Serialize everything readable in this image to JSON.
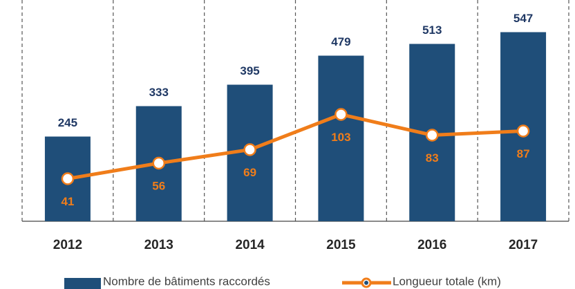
{
  "chart_data": {
    "type": "bar",
    "categories": [
      "2012",
      "2013",
      "2014",
      "2015",
      "2016",
      "2017"
    ],
    "series": [
      {
        "name": "Nombre de bâtiments raccordés",
        "color": "#1f4e79",
        "values": [
          245,
          333,
          395,
          479,
          513,
          547
        ]
      },
      {
        "name": "Longueur totale (km)",
        "color": "#f07d1a",
        "type": "line",
        "axis": "y2",
        "values": [
          41,
          56,
          69,
          103,
          83,
          87
        ]
      }
    ],
    "ylim": [
      0,
      600
    ],
    "y2lim": [
      0,
      200
    ]
  }
}
